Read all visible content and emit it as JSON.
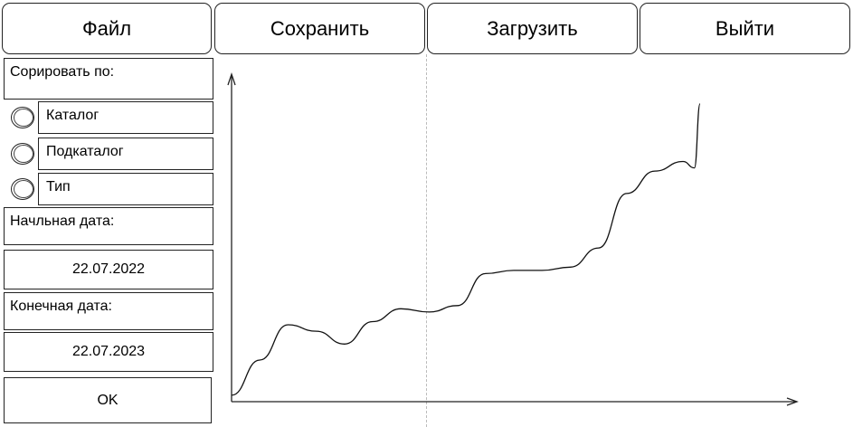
{
  "menu": {
    "file": "Файл",
    "save": "Сохранить",
    "load": "Загрузить",
    "exit": "Выйти"
  },
  "sidebar": {
    "sort_label": "Сорировать по:",
    "options": [
      "Каталог",
      "Подкаталог",
      "Тип"
    ],
    "start_label": "Начльная дата:",
    "start_value": "22.07.2022",
    "end_label": "Конечная дата:",
    "end_value": "22.07.2023",
    "ok_label": "OK"
  },
  "chart_data": {
    "type": "line",
    "x": [
      0,
      5,
      10,
      15,
      20,
      25,
      30,
      35,
      40,
      45,
      50,
      55,
      60,
      65,
      70,
      75,
      80,
      82,
      83
    ],
    "values": [
      2,
      13,
      24,
      22,
      18,
      25,
      29,
      28,
      30,
      40,
      41,
      41,
      42,
      48,
      65,
      72,
      75,
      73,
      93
    ],
    "xlim": [
      0,
      100
    ],
    "ylim": [
      0,
      100
    ],
    "title": "",
    "xlabel": "",
    "ylabel": ""
  }
}
